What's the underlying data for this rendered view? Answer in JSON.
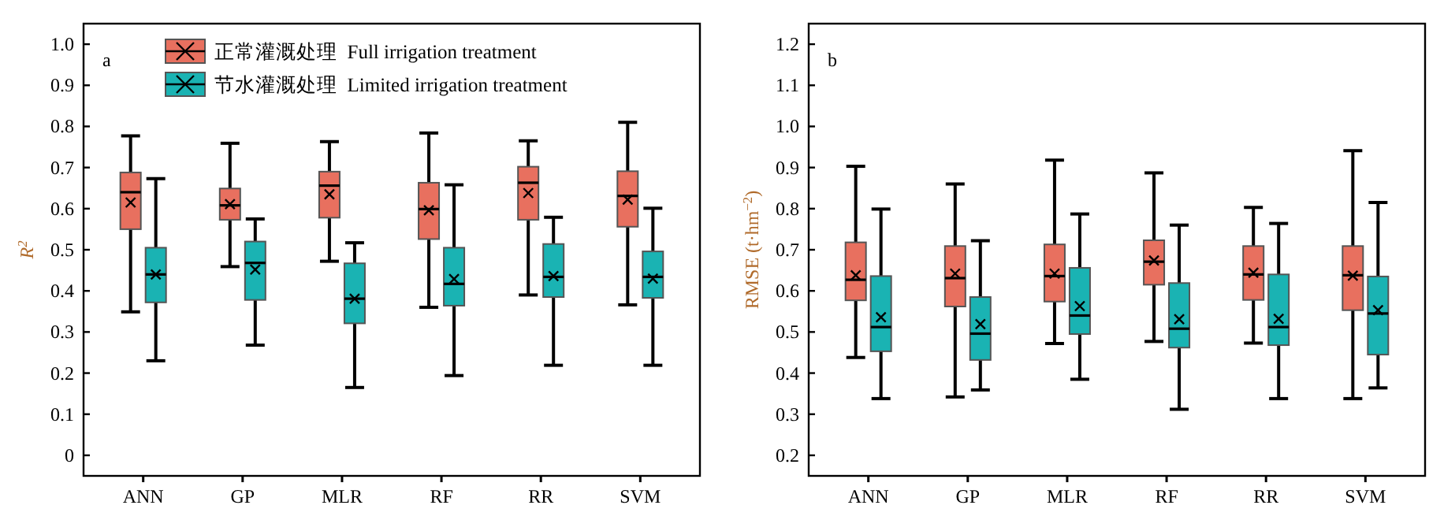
{
  "chart_data": [
    {
      "type": "box",
      "categories": [
        "ANN",
        "GP",
        "MLR",
        "RF",
        "RR",
        "SVM"
      ],
      "ylabel": "R$^{2}$",
      "annotations": [
        "a"
      ],
      "ylim": [
        -0.05,
        1.05
      ],
      "yticks": [
        0,
        0.1,
        0.2,
        0.3,
        0.4,
        0.5,
        0.6,
        0.7,
        0.8,
        0.9,
        {
          "value": 1.0,
          "label": "1.0"
        }
      ],
      "legend": "top left",
      "grid": false,
      "series": [
        {
          "name": "正常灌溉处理  Full irrigation treatment",
          "color": "#e8705f",
          "boxes": [
            {
              "low": 0.349,
              "q1": 0.55,
              "median": 0.64,
              "q3": 0.688,
              "high": 0.777,
              "mean": 0.615
            },
            {
              "low": 0.459,
              "q1": 0.573,
              "median": 0.608,
              "q3": 0.649,
              "high": 0.759,
              "mean": 0.611
            },
            {
              "low": 0.472,
              "q1": 0.578,
              "median": 0.656,
              "q3": 0.69,
              "high": 0.763,
              "mean": 0.635
            },
            {
              "low": 0.36,
              "q1": 0.526,
              "median": 0.599,
              "q3": 0.663,
              "high": 0.784,
              "mean": 0.596
            },
            {
              "low": 0.39,
              "q1": 0.573,
              "median": 0.663,
              "q3": 0.702,
              "high": 0.765,
              "mean": 0.638
            },
            {
              "low": 0.366,
              "q1": 0.556,
              "median": 0.631,
              "q3": 0.691,
              "high": 0.81,
              "mean": 0.622
            }
          ]
        },
        {
          "name": "节水灌溉处理  Limited irrigation treatment",
          "color": "#1ab3b3",
          "boxes": [
            {
              "low": 0.23,
              "q1": 0.372,
              "median": 0.44,
              "q3": 0.505,
              "high": 0.673,
              "mean": 0.44
            },
            {
              "low": 0.268,
              "q1": 0.378,
              "median": 0.468,
              "q3": 0.52,
              "high": 0.575,
              "mean": 0.452
            },
            {
              "low": 0.165,
              "q1": 0.321,
              "median": 0.381,
              "q3": 0.467,
              "high": 0.517,
              "mean": 0.381
            },
            {
              "low": 0.194,
              "q1": 0.364,
              "median": 0.417,
              "q3": 0.505,
              "high": 0.658,
              "mean": 0.429
            },
            {
              "low": 0.219,
              "q1": 0.385,
              "median": 0.434,
              "q3": 0.514,
              "high": 0.579,
              "mean": 0.436
            },
            {
              "low": 0.219,
              "q1": 0.383,
              "median": 0.434,
              "q3": 0.496,
              "high": 0.601,
              "mean": 0.43
            }
          ]
        }
      ]
    },
    {
      "type": "box",
      "categories": [
        "ANN",
        "GP",
        "MLR",
        "RF",
        "RR",
        "SVM"
      ],
      "ylabel": "RMSE (t·hm$^{−2}$)",
      "annotations": [
        "b"
      ],
      "ylim": [
        0.15,
        1.25
      ],
      "yticks": [
        0.2,
        0.3,
        0.4,
        0.5,
        0.6,
        0.7,
        0.8,
        0.9,
        {
          "value": 1.0,
          "label": "1.0"
        },
        1.1,
        1.2
      ],
      "grid": false,
      "series": [
        {
          "color": "#e8705f",
          "boxes": [
            {
              "low": 0.438,
              "q1": 0.577,
              "median": 0.627,
              "q3": 0.718,
              "high": 0.903,
              "mean": 0.638
            },
            {
              "low": 0.342,
              "q1": 0.562,
              "median": 0.631,
              "q3": 0.709,
              "high": 0.86,
              "mean": 0.642
            },
            {
              "low": 0.472,
              "q1": 0.574,
              "median": 0.636,
              "q3": 0.713,
              "high": 0.918,
              "mean": 0.642
            },
            {
              "low": 0.477,
              "q1": 0.615,
              "median": 0.671,
              "q3": 0.723,
              "high": 0.887,
              "mean": 0.674
            },
            {
              "low": 0.473,
              "q1": 0.578,
              "median": 0.64,
              "q3": 0.709,
              "high": 0.803,
              "mean": 0.644
            },
            {
              "low": 0.338,
              "q1": 0.553,
              "median": 0.638,
              "q3": 0.709,
              "high": 0.941,
              "mean": 0.637
            }
          ]
        },
        {
          "color": "#1ab3b3",
          "boxes": [
            {
              "low": 0.338,
              "q1": 0.453,
              "median": 0.512,
              "q3": 0.636,
              "high": 0.799,
              "mean": 0.536
            },
            {
              "low": 0.359,
              "q1": 0.432,
              "median": 0.496,
              "q3": 0.585,
              "high": 0.722,
              "mean": 0.519
            },
            {
              "low": 0.385,
              "q1": 0.495,
              "median": 0.54,
              "q3": 0.656,
              "high": 0.787,
              "mean": 0.563
            },
            {
              "low": 0.312,
              "q1": 0.462,
              "median": 0.508,
              "q3": 0.619,
              "high": 0.76,
              "mean": 0.531
            },
            {
              "low": 0.338,
              "q1": 0.468,
              "median": 0.512,
              "q3": 0.64,
              "high": 0.764,
              "mean": 0.532
            },
            {
              "low": 0.364,
              "q1": 0.445,
              "median": 0.545,
              "q3": 0.635,
              "high": 0.815,
              "mean": 0.553
            }
          ]
        }
      ]
    }
  ]
}
